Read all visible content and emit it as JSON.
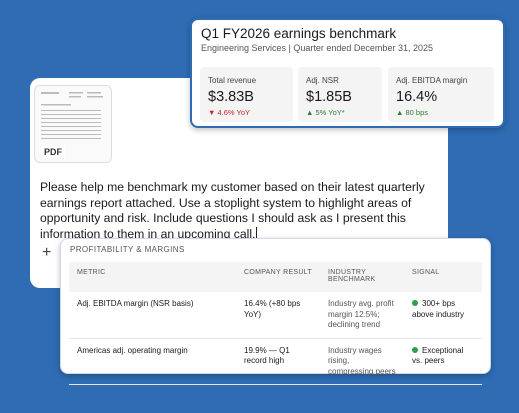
{
  "benchmark_card": {
    "title": "Q1 FY2026 earnings benchmark",
    "subtitle": "Engineering Services | Quarter ended December 31, 2025",
    "metrics": [
      {
        "label": "Total revenue",
        "value": "$3.83B",
        "change": "▼ 4.6% YoY",
        "color": "#c62828"
      },
      {
        "label": "Adj. NSR",
        "value": "$1.85B",
        "change": "▲ 5% YoY*",
        "color": "#2e7d32"
      },
      {
        "label": "Adj. EBITDA margin",
        "value": "16.4%",
        "change": "▲ 80 bps",
        "color": "#2e7d32"
      }
    ]
  },
  "chat": {
    "attachment_label": "PDF",
    "message": "Please help me benchmark my customer based on their latest quarterly earnings report attached. Use a stoplight system to highlight areas of opportunity and risk. Include questions I should ask as I present this information to them in an upcoming call.",
    "add_button": "+"
  },
  "table": {
    "title": "PROFITABILITY & MARGINS",
    "headers": [
      "METRIC",
      "COMPANY RESULT",
      "INDUSTRY BENCHMARK",
      "SIGNAL"
    ],
    "rows": [
      [
        "Adj. EBITDA margin (NSR basis)",
        "16.4% (+80 bps YoY)",
        "Industry avg. profit margin 12.5%; declining trend",
        "300+ bps above industry"
      ],
      [
        "Americas adj. operating margin",
        "19.9% — Q1 record high",
        "Industry wages rising, compressing peers",
        "Exceptional vs. peers"
      ]
    ],
    "signal_color": "#2e9e4f"
  }
}
